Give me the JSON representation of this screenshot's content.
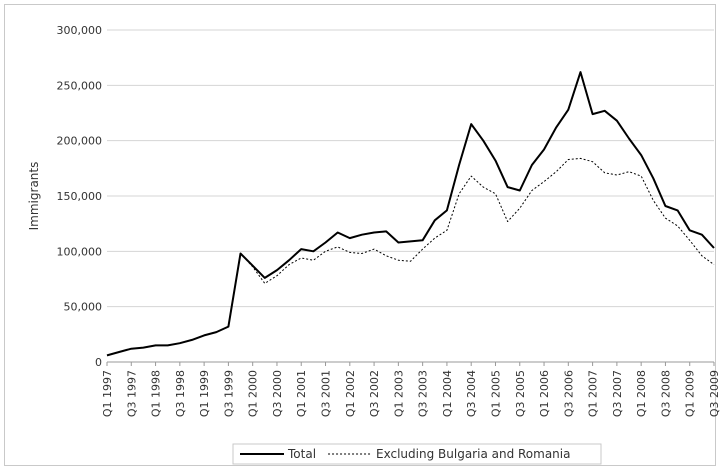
{
  "chart_data": {
    "type": "line",
    "ylabel": "Immigrants",
    "ylim": [
      0,
      300000
    ],
    "yticks": [
      "0",
      "50,000",
      "100,000",
      "150,000",
      "200,000",
      "250,000",
      "300,000"
    ],
    "xtick_labels": [
      "Q1 1997",
      "Q3 1997",
      "Q1 1998",
      "Q3 1998",
      "Q1 1999",
      "Q3 1999",
      "Q1 2000",
      "Q3 2000",
      "Q1 2001",
      "Q3 2001",
      "Q1 2002",
      "Q3 2002",
      "Q1 2003",
      "Q3 2003",
      "Q1 2004",
      "Q3 2004",
      "Q1 2005",
      "Q3 2005",
      "Q1 2006",
      "Q3 2006",
      "Q1 2007",
      "Q3 2007",
      "Q1 2008",
      "Q3 2008",
      "Q1 2009",
      "Q3 2009"
    ],
    "grid": "horizontal",
    "legend_position": "bottom",
    "series": [
      {
        "name": "Total",
        "style": "solid",
        "color": "#000000",
        "values": [
          6000,
          9000,
          12000,
          13000,
          15000,
          15000,
          17000,
          20000,
          24000,
          27000,
          32000,
          98000,
          87000,
          76000,
          83000,
          92000,
          102000,
          100000,
          108000,
          117000,
          112000,
          115000,
          117000,
          118000,
          108000,
          109000,
          110000,
          128000,
          137000,
          178000,
          215000,
          200000,
          182000,
          158000,
          155000,
          178000,
          192000,
          212000,
          228000,
          262000,
          224000,
          227000,
          218000,
          202000,
          187000,
          166000,
          141000,
          137000,
          119000,
          115000,
          103000
        ]
      },
      {
        "name": "Excluding Bulgaria and Romania",
        "style": "dotted",
        "color": "#000000",
        "values": [
          6000,
          9000,
          12000,
          13000,
          15000,
          15000,
          17000,
          20000,
          24000,
          27000,
          32000,
          98000,
          86000,
          71000,
          78000,
          88000,
          94000,
          92000,
          100000,
          104000,
          99000,
          98000,
          102000,
          96000,
          92000,
          91000,
          102000,
          112000,
          119000,
          152000,
          168000,
          158000,
          152000,
          127000,
          139000,
          155000,
          163000,
          172000,
          183000,
          184000,
          181000,
          171000,
          169000,
          172000,
          168000,
          146000,
          130000,
          123000,
          110000,
          96000,
          88000
        ]
      }
    ]
  }
}
